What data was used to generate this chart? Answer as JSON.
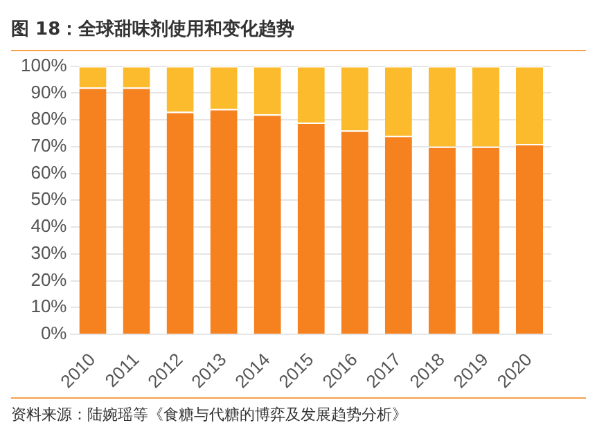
{
  "chart_data": {
    "type": "bar",
    "title": "图 18：全球甜味剂使用和变化趋势",
    "categories": [
      "2010",
      "2011",
      "2012",
      "2013",
      "2014",
      "2015",
      "2016",
      "2017",
      "2018",
      "2019",
      "2020"
    ],
    "stacked": true,
    "series": [
      {
        "color": "#f5821f",
        "values": [
          92,
          92,
          83,
          84,
          82,
          79,
          76,
          74,
          70,
          70,
          71
        ]
      },
      {
        "color": "#fbbb2c",
        "values": [
          8,
          8,
          17,
          16,
          18,
          21,
          24,
          26,
          30,
          30,
          29
        ]
      }
    ],
    "ylim": [
      0,
      100
    ],
    "yticks": [
      {
        "value": 0,
        "label": "0%"
      },
      {
        "value": 10,
        "label": "10%"
      },
      {
        "value": 20,
        "label": "20%"
      },
      {
        "value": 30,
        "label": "30%"
      },
      {
        "value": 40,
        "label": "40%"
      },
      {
        "value": 50,
        "label": "50%"
      },
      {
        "value": 60,
        "label": "60%"
      },
      {
        "value": 70,
        "label": "70%"
      },
      {
        "value": 80,
        "label": "80%"
      },
      {
        "value": 90,
        "label": "90%"
      },
      {
        "value": 100,
        "label": "100%"
      }
    ],
    "grid": "y",
    "legend": false,
    "annotations": [
      "资料来源：陆婉瑶等《食糖与代糖的博弈及发展趋势分析》"
    ]
  }
}
